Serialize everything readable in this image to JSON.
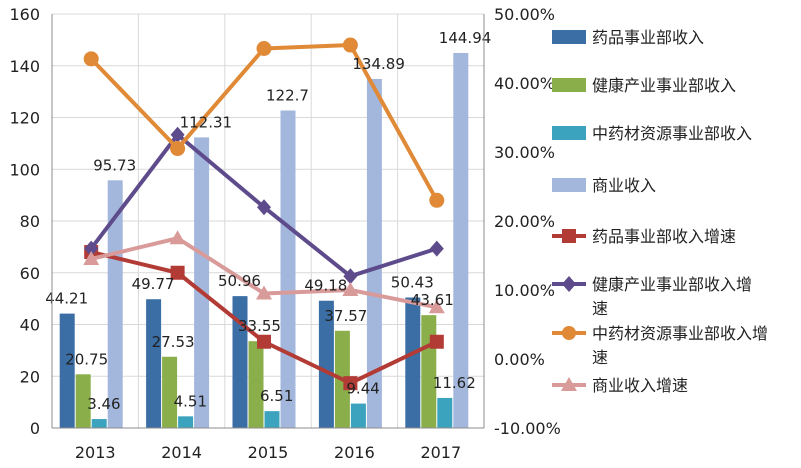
{
  "chart_data": {
    "type": "bar",
    "categories": [
      "2013",
      "2014",
      "2015",
      "2016",
      "2017"
    ],
    "y_left": {
      "min": 0,
      "max": 160,
      "step": 20,
      "ticks": [
        "0",
        "20",
        "40",
        "60",
        "80",
        "100",
        "120",
        "140",
        "160"
      ]
    },
    "y_right": {
      "min": -0.1,
      "max": 0.5,
      "step": 0.1,
      "ticks": [
        "-10.00%",
        "0.00%",
        "10.00%",
        "20.00%",
        "30.00%",
        "40.00%",
        "50.00%"
      ]
    },
    "grid": true,
    "legend_position": "right",
    "bar_series": [
      {
        "name": "药品事业部收入",
        "color": "#3A6EA5",
        "values": [
          44.21,
          49.77,
          50.96,
          49.18,
          50.43
        ],
        "labels": [
          "44.21",
          "49.77",
          "50.96",
          "49.18",
          "50.43"
        ]
      },
      {
        "name": "健康产业事业部收入",
        "color": "#8AAE4A",
        "values": [
          20.75,
          27.53,
          33.55,
          37.57,
          43.61
        ],
        "labels": [
          "20.75",
          "27.53",
          "33.55",
          "37.57",
          "43.61"
        ]
      },
      {
        "name": "中药材资源事业部收入",
        "color": "#3BA3BE",
        "values": [
          3.46,
          4.51,
          6.51,
          9.44,
          11.62
        ],
        "labels": [
          "3.46",
          "4.51",
          "6.51",
          "9.44",
          "11.62"
        ]
      },
      {
        "name": "商业收入",
        "color": "#A3B7DC",
        "values": [
          95.73,
          112.31,
          122.7,
          134.89,
          144.94
        ],
        "labels": [
          "95.73",
          "112.31",
          "122.7",
          "134.89",
          "144.94"
        ]
      }
    ],
    "line_series": [
      {
        "name": "药品事业部收入增速",
        "color": "#B23B35",
        "marker": "square",
        "values": [
          0.155,
          0.125,
          0.025,
          -0.035,
          0.025
        ]
      },
      {
        "name": "健康产业事业部收入增速",
        "color": "#5E4B8B",
        "marker": "diamond",
        "values": [
          0.16,
          0.325,
          0.22,
          0.12,
          0.16
        ]
      },
      {
        "name": "中药材资源事业部收入增速",
        "color": "#E08A38",
        "marker": "circle",
        "values": [
          0.435,
          0.305,
          0.45,
          0.455,
          0.23
        ]
      },
      {
        "name": "商业收入增速",
        "color": "#D99A9A",
        "marker": "triangle",
        "values": [
          0.145,
          0.175,
          0.095,
          0.1,
          0.075
        ]
      }
    ]
  }
}
